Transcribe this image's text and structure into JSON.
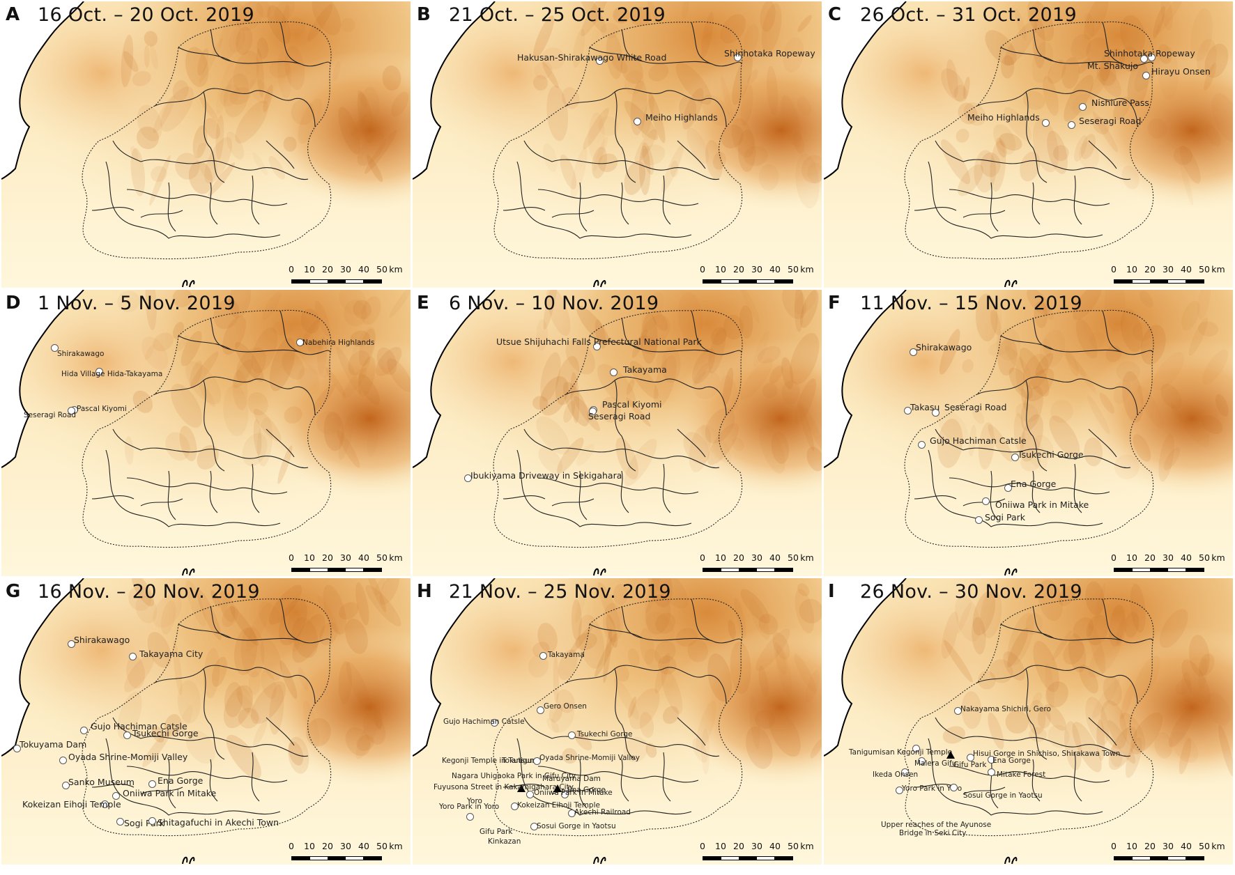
{
  "scale_bar": {
    "labels": [
      "0",
      "10",
      "20",
      "30",
      "40",
      "50",
      "km"
    ]
  },
  "panels": [
    {
      "letter": "A",
      "date": "16 Oct. – 20 Oct. 2019",
      "places": []
    },
    {
      "letter": "B",
      "date": "21 Oct. – 25 Oct. 2019",
      "places": [
        {
          "name": "Hakusan-Shirakawago White Road",
          "marker": "circle"
        },
        {
          "name": "Shinhotaka Ropeway",
          "marker": "circle"
        },
        {
          "name": "Meiho Highlands",
          "marker": "circle"
        }
      ]
    },
    {
      "letter": "C",
      "date": "26 Oct. – 31 Oct. 2019",
      "places": [
        {
          "name": "Shinhotaka Ropeway",
          "marker": "circle"
        },
        {
          "name": "Mt. Shakujo",
          "marker": "circle"
        },
        {
          "name": "Hirayu Onsen",
          "marker": "circle"
        },
        {
          "name": "Nishiure Pass",
          "marker": "circle"
        },
        {
          "name": "Meiho Highlands",
          "marker": "circle"
        },
        {
          "name": "Seseragi Road",
          "marker": "circle"
        }
      ]
    },
    {
      "letter": "D",
      "date": "1 Nov. – 5 Nov. 2019",
      "places": [
        {
          "name": "Shirakawago",
          "marker": "circle"
        },
        {
          "name": "Nabehira Highlands",
          "marker": "circle"
        },
        {
          "name": "Hida Village Hida-Takayama",
          "marker": "circle"
        },
        {
          "name": "Pascal Kiyomi",
          "marker": "circle"
        },
        {
          "name": "Seseragi Road",
          "marker": "circle"
        }
      ]
    },
    {
      "letter": "E",
      "date": "6 Nov. – 10 Nov. 2019",
      "places": [
        {
          "name": "Utsue Shijuhachi Falls Prefectural National Park",
          "marker": "circle"
        },
        {
          "name": "Takayama",
          "marker": "circle"
        },
        {
          "name": "Pascal Kiyomi",
          "marker": "circle"
        },
        {
          "name": "Seseragi Road",
          "marker": "circle"
        },
        {
          "name": "Ibukiyama Driveway in Sekigahara",
          "marker": "circle"
        }
      ]
    },
    {
      "letter": "F",
      "date": "11 Nov. – 15 Nov. 2019",
      "places": [
        {
          "name": "Shirakawago",
          "marker": "circle"
        },
        {
          "name": "Takasu",
          "marker": "circle"
        },
        {
          "name": "Seseragi Road",
          "marker": "circle"
        },
        {
          "name": "Gujo Hachiman Catsle",
          "marker": "circle"
        },
        {
          "name": "Tsukechi Gorge",
          "marker": "circle"
        },
        {
          "name": "Ena Gorge",
          "marker": "circle"
        },
        {
          "name": "Oniiwa Park in Mitake",
          "marker": "circle"
        },
        {
          "name": "Sogi Park",
          "marker": "circle"
        }
      ]
    },
    {
      "letter": "G",
      "date": "16 Nov. – 20 Nov. 2019",
      "places": [
        {
          "name": "Shirakawago",
          "marker": "circle"
        },
        {
          "name": "Takayama City",
          "marker": "circle"
        },
        {
          "name": "Gujo Hachiman Catsle",
          "marker": "circle"
        },
        {
          "name": "Tsukechi Gorge",
          "marker": "circle"
        },
        {
          "name": "Tokuyama Dam",
          "marker": "circle"
        },
        {
          "name": "Oyada Shrine-Momiji Valley",
          "marker": "circle"
        },
        {
          "name": "Ena Gorge",
          "marker": "circle"
        },
        {
          "name": "Sanko Museum",
          "marker": "circle"
        },
        {
          "name": "Oniiwa Park in Mitake",
          "marker": "circle"
        },
        {
          "name": "Kokeizan Eihoji Temple",
          "marker": "circle"
        },
        {
          "name": "Sogi Park",
          "marker": "circle"
        },
        {
          "name": "Shitagafuchi in Akechi Town",
          "marker": "circle"
        }
      ]
    },
    {
      "letter": "H",
      "date": "21 Nov. – 25 Nov. 2019",
      "places": [
        {
          "name": "Takayama",
          "marker": "circle"
        },
        {
          "name": "Gero Onsen",
          "marker": "circle"
        },
        {
          "name": "Gujo Hachiman Catsle",
          "marker": "circle"
        },
        {
          "name": "Tsukechi Gorge",
          "marker": "circle"
        },
        {
          "name": "Kegonji Temple in Tanigumi",
          "marker": "circle"
        },
        {
          "name": "Tokutsumi",
          "marker": "circle"
        },
        {
          "name": "Oyada Shrine-Momiji Valley",
          "marker": "circle"
        },
        {
          "name": "Nagara Uhigaoka Park in Gifu City",
          "marker": "circle"
        },
        {
          "name": "Maruyama Dam",
          "marker": "triangle"
        },
        {
          "name": "Ena Gorge",
          "marker": "circle"
        },
        {
          "name": "Fuyusona Street in Kakamigahara City",
          "marker": "triangle"
        },
        {
          "name": "Oniiwa Park in Mitake",
          "marker": "circle"
        },
        {
          "name": "Yoro",
          "marker": "circle"
        },
        {
          "name": "Kokeizan Eihoji Temple",
          "marker": "circle"
        },
        {
          "name": "Akechi Railroad",
          "marker": "circle"
        },
        {
          "name": "Yoro Park in Yoro",
          "marker": "circle"
        },
        {
          "name": "Gifu Park",
          "marker": "circle"
        },
        {
          "name": "Kinkazan",
          "marker": "circle"
        },
        {
          "name": "Sosui Gorge in Yaotsu",
          "marker": "circle"
        }
      ]
    },
    {
      "letter": "I",
      "date": "26 Nov. – 30 Nov. 2019",
      "places": [
        {
          "name": "Nakayama Shichiri, Gero",
          "marker": "circle"
        },
        {
          "name": "Tanigumisan Kegonji Temple",
          "marker": "circle"
        },
        {
          "name": "Hisui Gorge in Shichiso, Shirakawa Town",
          "marker": "circle"
        },
        {
          "name": "Malera Gifu",
          "marker": "circle"
        },
        {
          "name": "Gifu Park",
          "marker": "triangle"
        },
        {
          "name": "Ena Gorge",
          "marker": "circle"
        },
        {
          "name": "Ikeda Onsen",
          "marker": "circle"
        },
        {
          "name": "Mitake Forest",
          "marker": "circle"
        },
        {
          "name": "Yoro Park in Yoro",
          "marker": "circle"
        },
        {
          "name": "Sosui Gorge in Yaotsu",
          "marker": "circle"
        },
        {
          "name": "Upper reaches of the Ayunose",
          "marker": "none"
        },
        {
          "name": "Bridge in Seki City",
          "marker": "none"
        }
      ]
    }
  ]
}
